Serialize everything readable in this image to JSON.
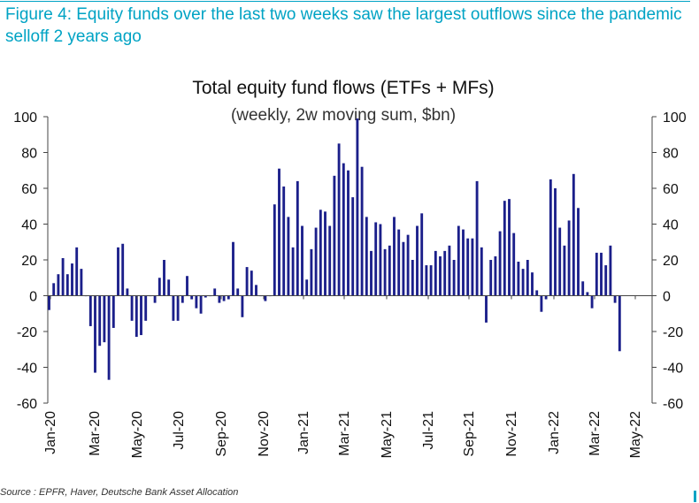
{
  "figure": {
    "caption": "Figure 4: Equity funds over the last two weeks saw the largest outflows since the pandemic selloff 2 years ago",
    "source": "Source : EPFR, Haver, Deutsche Bank Asset Allocation"
  },
  "colors": {
    "bar": "#1b1f8a",
    "axis": "#444444",
    "caption": "#00a3c4"
  },
  "chart_data": {
    "type": "bar",
    "title": "Total equity fund flows (ETFs + MFs)",
    "subtitle": "(weekly, 2w moving sum, $bn)",
    "xlabel": "",
    "ylabel": "",
    "ylim": [
      -60,
      100
    ],
    "yticks": [
      100,
      80,
      60,
      40,
      20,
      0,
      -20,
      -40,
      -60
    ],
    "secondary_y_axis": true,
    "x_tick_labels": [
      "Jan-20",
      "Mar-20",
      "May-20",
      "Jul-20",
      "Sep-20",
      "Nov-20",
      "Jan-21",
      "Mar-21",
      "May-21",
      "Jul-21",
      "Sep-21",
      "Nov-21",
      "Jan-22",
      "Mar-22",
      "May-22"
    ],
    "bar_width_weeks": 0.55,
    "series": [
      {
        "values": [
          -8,
          7,
          12,
          21,
          12,
          18,
          27,
          15,
          0,
          -17,
          -43,
          -28,
          -26,
          -47,
          -18,
          27,
          29,
          4,
          -14,
          -23,
          -22,
          -14,
          0,
          -4,
          10,
          20,
          9,
          -14,
          -14,
          -4,
          11,
          -2,
          -7,
          -10,
          -1,
          0,
          4,
          -4,
          -3,
          -2,
          30,
          4,
          -12,
          16,
          14,
          6,
          0,
          -3,
          0,
          51,
          71,
          61,
          44,
          27,
          64,
          39,
          9,
          26,
          38,
          48,
          47,
          39,
          67,
          85,
          74,
          70,
          55,
          99,
          72,
          44,
          25,
          41,
          40,
          26,
          28,
          44,
          37,
          30,
          34,
          20,
          39,
          46,
          17,
          17,
          25,
          22,
          25,
          28,
          20,
          39,
          37,
          32,
          32,
          64,
          27,
          -15,
          20,
          22,
          36,
          53,
          54,
          35,
          19,
          15,
          20,
          13,
          3,
          -9,
          -2,
          65,
          60,
          38,
          28,
          42,
          68,
          49,
          8,
          2,
          -7,
          24,
          24,
          17,
          28,
          -4,
          -31
        ]
      }
    ]
  }
}
